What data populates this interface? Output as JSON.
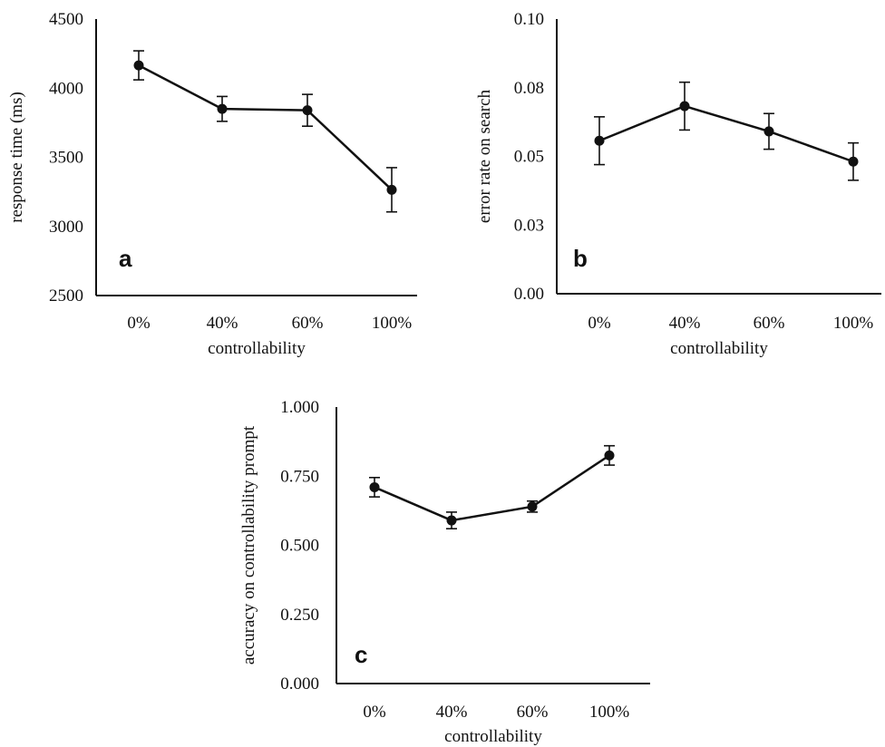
{
  "chart_data": [
    {
      "type": "line",
      "panel_label": "a",
      "categories": [
        "0%",
        "40%",
        "60%",
        "100%"
      ],
      "xlabel": "controllability",
      "ylabel": "response time (ms)",
      "ylim": [
        2500,
        4500
      ],
      "yticks": [
        "2500",
        "3000",
        "3500",
        "4000",
        "4500"
      ],
      "series": [
        {
          "values": [
            4165,
            3850,
            3840,
            3265
          ],
          "error": [
            105,
            90,
            115,
            160
          ]
        }
      ],
      "colors": {
        "line": "#111111"
      }
    },
    {
      "type": "line",
      "panel_label": "b",
      "categories": [
        "0%",
        "40%",
        "60%",
        "100%"
      ],
      "xlabel": "controllability",
      "ylabel": "error rate on search",
      "ylim": [
        0,
        0.1
      ],
      "yticks": [
        "0.00",
        "0.03",
        "0.05",
        "0.08",
        "0.10"
      ],
      "series": [
        {
          "values": [
            0.0557,
            0.0683,
            0.0591,
            0.0481
          ],
          "error": [
            0.0087,
            0.0087,
            0.0065,
            0.0068
          ]
        }
      ],
      "colors": {
        "line": "#111111"
      }
    },
    {
      "type": "line",
      "panel_label": "c",
      "categories": [
        "0%",
        "40%",
        "60%",
        "100%"
      ],
      "xlabel": "controllability",
      "ylabel": "accuracy on controllability prompt",
      "ylim": [
        0,
        1
      ],
      "yticks": [
        "0.000",
        "0.250",
        "0.500",
        "0.750",
        "1.000"
      ],
      "series": [
        {
          "values": [
            0.71,
            0.59,
            0.64,
            0.825
          ],
          "error": [
            0.035,
            0.03,
            0.02,
            0.035
          ]
        }
      ],
      "colors": {
        "line": "#111111"
      }
    }
  ]
}
